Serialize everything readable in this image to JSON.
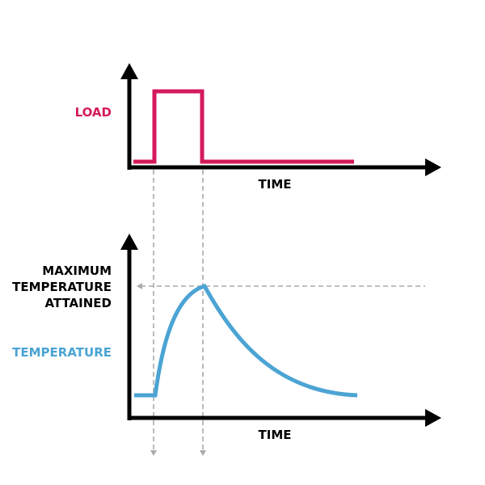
{
  "colors": {
    "load": "#d41a5c",
    "temperature": "#4ba4d4",
    "axis": "#000000",
    "guide": "#aaaaaa"
  },
  "top_chart": {
    "y_label": "LOAD",
    "x_label": "TIME"
  },
  "bottom_chart": {
    "y_label": "TEMPERATURE",
    "annotation": [
      "MAXIMUM",
      "TEMPERATURE",
      "ATTAINED"
    ],
    "x_label": "TIME"
  }
}
